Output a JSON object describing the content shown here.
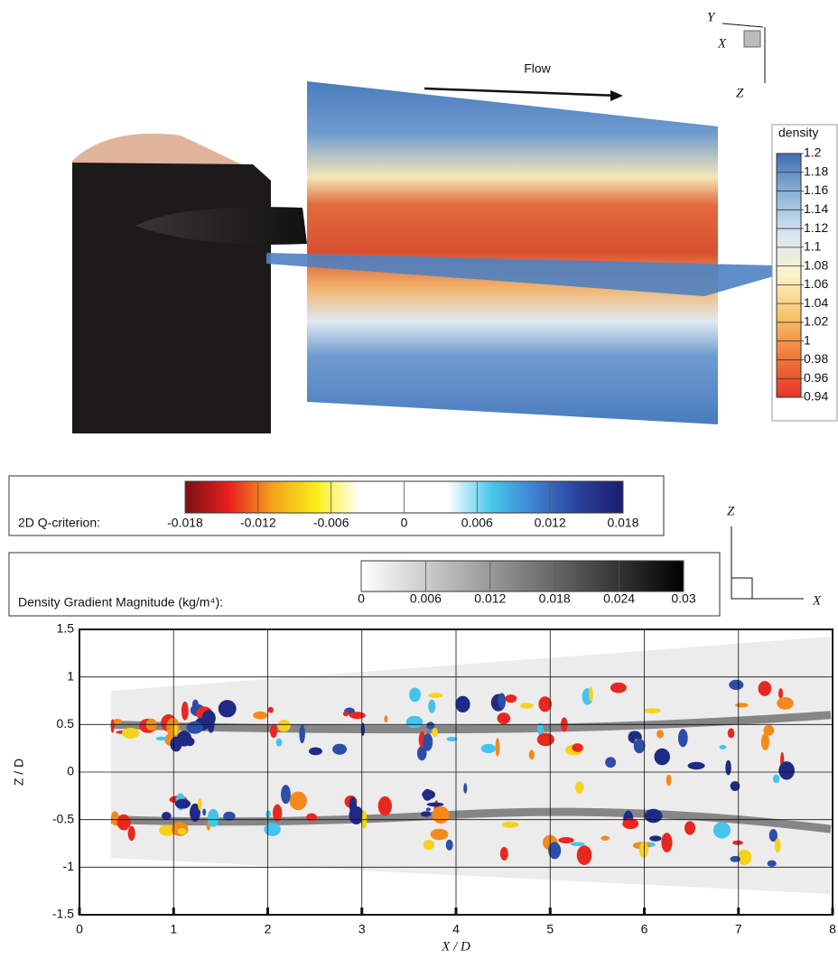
{
  "figure": {
    "flow_label": "Flow",
    "triad_3d": [
      "Y",
      "X",
      "Z"
    ],
    "triad_2d": [
      "Z",
      "X"
    ]
  },
  "chart_data": [
    {
      "type": "colorbar",
      "orientation": "vertical",
      "title": "density",
      "ylim": [
        0.94,
        1.2
      ],
      "yticks": [
        1.2,
        1.18,
        1.16,
        1.14,
        1.12,
        1.1,
        1.08,
        1.06,
        1.04,
        1.02,
        1,
        0.98,
        0.96,
        0.94
      ],
      "colors": [
        "#e8322a",
        "#ef7a3c",
        "#f6c56a",
        "#fbf3c8",
        "#d7e6f1",
        "#8fb4d8",
        "#3f6fb2"
      ]
    },
    {
      "type": "colorbar",
      "orientation": "horizontal",
      "title": "2D Q-criterion:",
      "xlim": [
        -0.018,
        0.018
      ],
      "xticks": [
        -0.018,
        -0.012,
        -0.006,
        0,
        0.006,
        0.012,
        0.018
      ],
      "colors": [
        "#7a1010",
        "#e8201f",
        "#f7a21c",
        "#f9ef1a",
        "#ffffff",
        "#ffffff",
        "#ffffff",
        "#46c8ec",
        "#3e7fd2",
        "#2a3e9a",
        "#1c1d6e"
      ]
    },
    {
      "type": "colorbar",
      "orientation": "horizontal",
      "title": "Density Gradient Magnitude (kg/m⁴):",
      "xlim": [
        0,
        0.03
      ],
      "xticks": [
        0,
        0.006,
        0.012,
        0.018,
        0.024,
        0.03
      ],
      "colors": [
        "#ffffff",
        "#000000"
      ]
    },
    {
      "type": "field",
      "xlabel": "X / D",
      "ylabel": "Z / D",
      "xlim": [
        0,
        8
      ],
      "ylim": [
        -1.5,
        1.5
      ],
      "xticks": [
        0,
        1,
        2,
        3,
        4,
        5,
        6,
        7,
        8
      ],
      "yticks": [
        -1.5,
        -1,
        -0.5,
        0,
        0.5,
        1,
        1.5
      ],
      "grid": true
    }
  ]
}
